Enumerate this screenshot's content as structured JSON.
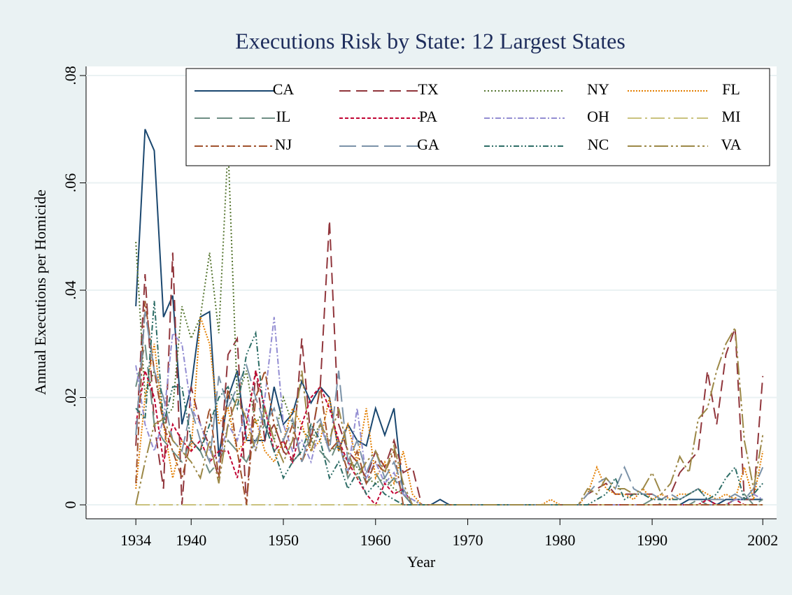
{
  "chart_data": {
    "type": "line",
    "title": "Executions Risk by State: 12 Largest States",
    "x_label": "Year",
    "y_label": "Annual Executions per Homicide",
    "x": [
      1934,
      1935,
      1936,
      1937,
      1938,
      1939,
      1940,
      1941,
      1942,
      1943,
      1944,
      1945,
      1946,
      1947,
      1948,
      1949,
      1950,
      1951,
      1952,
      1953,
      1954,
      1955,
      1956,
      1957,
      1958,
      1959,
      1960,
      1961,
      1962,
      1963,
      1964,
      1965,
      1966,
      1967,
      1968,
      1969,
      1970,
      1971,
      1972,
      1973,
      1974,
      1975,
      1976,
      1977,
      1978,
      1979,
      1980,
      1981,
      1982,
      1983,
      1984,
      1985,
      1986,
      1987,
      1988,
      1989,
      1990,
      1991,
      1992,
      1993,
      1994,
      1995,
      1996,
      1997,
      1998,
      1999,
      2000,
      2001,
      2002
    ],
    "xlim": [
      1928.6,
      2003.5
    ],
    "xticks": [
      1934,
      1940,
      1950,
      1960,
      1970,
      1980,
      1990,
      2002
    ],
    "ylim": [
      -0.0026,
      0.0817
    ],
    "yticks": [
      0,
      {
        "value": 0.02,
        "label": ".02"
      },
      {
        "value": 0.04,
        "label": ".04"
      },
      {
        "value": 0.06,
        "label": ".06"
      },
      {
        "value": 0.08,
        "label": ".08"
      }
    ],
    "grid": true,
    "legend_position": "top-right",
    "series": [
      {
        "name": "CA",
        "color": "#1a476f",
        "dash": "none",
        "values": [
          0.037,
          0.07,
          0.066,
          0.035,
          0.039,
          0.015,
          0.022,
          0.035,
          0.036,
          0.009,
          0.02,
          0.025,
          0.012,
          0.012,
          0.012,
          0.022,
          0.015,
          0.017,
          0.023,
          0.019,
          0.022,
          0.02,
          0.01,
          0.015,
          0.012,
          0.011,
          0.018,
          0.013,
          0.018,
          0.002,
          0,
          0,
          0,
          0.001,
          0,
          0,
          0,
          0,
          0,
          0,
          0,
          0,
          0,
          0,
          0,
          0,
          0,
          0,
          0,
          0,
          0,
          0,
          0,
          0,
          0,
          0,
          0,
          0,
          0,
          0,
          0.001,
          0.001,
          0.001,
          0,
          0.001,
          0.001,
          0.001,
          0.001,
          0.001
        ]
      },
      {
        "name": "TX",
        "color": "#90353b",
        "dash": "16 8",
        "values": [
          0.011,
          0.043,
          0.015,
          0.003,
          0.047,
          0,
          0.022,
          0.015,
          0.011,
          0.005,
          0.028,
          0.031,
          0,
          0.025,
          0.012,
          0.015,
          0.01,
          0.008,
          0.031,
          0.012,
          0.022,
          0.053,
          0.015,
          0.01,
          0.008,
          0.005,
          0.01,
          0.007,
          0.012,
          0.006,
          0.007,
          0,
          0,
          0,
          0,
          0,
          0,
          0,
          0,
          0,
          0,
          0,
          0,
          0,
          0,
          0,
          0,
          0,
          0,
          0.002,
          0.003,
          0.004,
          0.002,
          0.002,
          0.002,
          0.002,
          0.002,
          0.001,
          0.002,
          0.006,
          0.008,
          0.01,
          0.025,
          0.015,
          0.028,
          0.033,
          0.001,
          0.001,
          0.024
        ]
      },
      {
        "name": "NY",
        "color": "#55752f",
        "dash": "2 3",
        "values": [
          0.049,
          0.02,
          0.025,
          0.016,
          0.018,
          0.037,
          0.031,
          0.035,
          0.047,
          0.032,
          0.067,
          0.02,
          0.025,
          0.015,
          0.018,
          0.012,
          0.02,
          0.015,
          0.014,
          0.012,
          0.015,
          0.01,
          0.011,
          0.008,
          0.007,
          0.005,
          0.004,
          0.005,
          0.003,
          0.002,
          0.001,
          0,
          0,
          0,
          0,
          0,
          0,
          0,
          0,
          0,
          0,
          0,
          0,
          0,
          0,
          0,
          0,
          0,
          0,
          0,
          0,
          0,
          0,
          0,
          0,
          0,
          0,
          0,
          0,
          0,
          0,
          0,
          0,
          0,
          0,
          0,
          0,
          0,
          0
        ]
      },
      {
        "name": "FL",
        "color": "#e37e00",
        "dash": "2 2",
        "values": [
          0.003,
          0.02,
          0.03,
          0.015,
          0.005,
          0.012,
          0.01,
          0.035,
          0.03,
          0.015,
          0.018,
          0.01,
          0.012,
          0.016,
          0.01,
          0.008,
          0.012,
          0.018,
          0.015,
          0.01,
          0.012,
          0.02,
          0.01,
          0.015,
          0.008,
          0.018,
          0.005,
          0.008,
          0.004,
          0.01,
          0.002,
          0,
          0,
          0,
          0,
          0,
          0,
          0,
          0,
          0,
          0,
          0,
          0,
          0,
          0,
          0.001,
          0,
          0,
          0,
          0.002,
          0.007,
          0.003,
          0.002,
          0.002,
          0.001,
          0.003,
          0.001,
          0.002,
          0.001,
          0.002,
          0.002,
          0.003,
          0.002,
          0.001,
          0.002,
          0.001,
          0.007,
          0.001,
          0.01
        ]
      },
      {
        "name": "IL",
        "color": "#6e8e84",
        "dash": "22 10",
        "values": [
          0.022,
          0.03,
          0.015,
          0.012,
          0.01,
          0.008,
          0.012,
          0.01,
          0.006,
          0.008,
          0.012,
          0.01,
          0.008,
          0.012,
          0.015,
          0.01,
          0.012,
          0.008,
          0.01,
          0.012,
          0.01,
          0.008,
          0.012,
          0.005,
          0.008,
          0.004,
          0.006,
          0.003,
          0.005,
          0.002,
          0,
          0,
          0,
          0,
          0,
          0,
          0,
          0,
          0,
          0,
          0,
          0,
          0,
          0,
          0,
          0,
          0,
          0,
          0,
          0,
          0,
          0,
          0,
          0,
          0,
          0,
          0.001,
          0,
          0,
          0,
          0,
          0.001,
          0,
          0,
          0,
          0.001,
          0.002,
          0,
          0.001
        ]
      },
      {
        "name": "PA",
        "color": "#c10534",
        "dash": "5 3",
        "values": [
          0.015,
          0.025,
          0.02,
          0.008,
          0.015,
          0.012,
          0.01,
          0.012,
          0.008,
          0.01,
          0.01,
          0.005,
          0.015,
          0.025,
          0.018,
          0.01,
          0.012,
          0.008,
          0.015,
          0.02,
          0.022,
          0.018,
          0.012,
          0.008,
          0.005,
          0.002,
          0,
          0.004,
          0.002,
          0.003,
          0,
          0,
          0,
          0,
          0,
          0,
          0,
          0,
          0,
          0,
          0,
          0,
          0,
          0,
          0,
          0,
          0,
          0,
          0,
          0,
          0,
          0,
          0,
          0,
          0,
          0,
          0,
          0,
          0,
          0,
          0,
          0,
          0.001,
          0,
          0,
          0.001,
          0,
          0,
          0
        ]
      },
      {
        "name": "OH",
        "color": "#938dd2",
        "dash": "8 3 2 3",
        "values": [
          0.026,
          0.015,
          0.01,
          0.016,
          0.032,
          0.03,
          0.018,
          0.015,
          0.01,
          0.008,
          0.015,
          0.012,
          0.018,
          0.01,
          0.02,
          0.035,
          0.015,
          0.01,
          0.012,
          0.008,
          0.015,
          0.01,
          0.012,
          0.006,
          0.018,
          0.005,
          0.008,
          0.004,
          0.006,
          0.002,
          0.001,
          0,
          0,
          0,
          0,
          0,
          0,
          0,
          0,
          0,
          0,
          0,
          0,
          0,
          0,
          0,
          0,
          0,
          0,
          0,
          0,
          0,
          0,
          0,
          0,
          0,
          0,
          0,
          0,
          0,
          0,
          0,
          0,
          0,
          0,
          0.001,
          0.001,
          0.002,
          0.001
        ]
      },
      {
        "name": "MI",
        "color": "#cac27e",
        "dash": "20 5 3 5",
        "values": [
          0,
          0,
          0,
          0,
          0,
          0,
          0,
          0,
          0,
          0,
          0,
          0,
          0,
          0,
          0,
          0,
          0,
          0,
          0,
          0,
          0,
          0,
          0,
          0,
          0,
          0,
          0,
          0,
          0,
          0,
          0,
          0,
          0,
          0,
          0,
          0,
          0,
          0,
          0,
          0,
          0,
          0,
          0,
          0,
          0,
          0,
          0,
          0,
          0,
          0,
          0,
          0,
          0,
          0,
          0,
          0,
          0,
          0,
          0,
          0,
          0,
          0,
          0,
          0,
          0,
          0,
          0,
          0,
          0
        ]
      },
      {
        "name": "NJ",
        "color": "#a0522d",
        "dash": "12 4 3 4",
        "values": [
          0.004,
          0.038,
          0.025,
          0.015,
          0.01,
          0.005,
          0.012,
          0.01,
          0.018,
          0.005,
          0.022,
          0.01,
          0,
          0.02,
          0.025,
          0.015,
          0.01,
          0.015,
          0.008,
          0.012,
          0.022,
          0.01,
          0.012,
          0.006,
          0.01,
          0.004,
          0.008,
          0.006,
          0.01,
          0,
          0,
          0,
          0,
          0,
          0,
          0,
          0,
          0,
          0,
          0,
          0,
          0,
          0,
          0,
          0,
          0,
          0,
          0,
          0,
          0,
          0,
          0,
          0,
          0,
          0,
          0,
          0,
          0,
          0,
          0,
          0,
          0,
          0,
          0,
          0,
          0,
          0,
          0,
          0
        ]
      },
      {
        "name": "GA",
        "color": "#7b92a8",
        "dash": "24 8",
        "values": [
          0.013,
          0.036,
          0.025,
          0.02,
          0.012,
          0.01,
          0.018,
          0.012,
          0.008,
          0.024,
          0.018,
          0.022,
          0.026,
          0.02,
          0.015,
          0.018,
          0.012,
          0.016,
          0.008,
          0.014,
          0.016,
          0.01,
          0.025,
          0.008,
          0.012,
          0.006,
          0.01,
          0.005,
          0.008,
          0.003,
          0,
          0,
          0,
          0,
          0,
          0,
          0,
          0,
          0,
          0,
          0,
          0,
          0,
          0,
          0,
          0,
          0,
          0,
          0,
          0.002,
          0.004,
          0.005,
          0.003,
          0.007,
          0.003,
          0.002,
          0.002,
          0.001,
          0.002,
          0.001,
          0.002,
          0.003,
          0.001,
          0.001,
          0.001,
          0.002,
          0.001,
          0.003,
          0.007
        ]
      },
      {
        "name": "NC",
        "color": "#2d6d66",
        "dash": "8 3 2 3 2 3",
        "values": [
          0.018,
          0.016,
          0.038,
          0.015,
          0.022,
          0.022,
          0.012,
          0.01,
          0.015,
          0.02,
          0.022,
          0.018,
          0.028,
          0.032,
          0.015,
          0.01,
          0.005,
          0.008,
          0.01,
          0.015,
          0.012,
          0.005,
          0.008,
          0.003,
          0.006,
          0.002,
          0.004,
          0.002,
          0.001,
          0,
          0,
          0,
          0,
          0,
          0,
          0,
          0,
          0,
          0,
          0,
          0,
          0,
          0,
          0,
          0,
          0,
          0,
          0,
          0,
          0,
          0.001,
          0.002,
          0.005,
          0.001,
          0.002,
          0.002,
          0.001,
          0.001,
          0.001,
          0.001,
          0.002,
          0.003,
          0.001,
          0.002,
          0.005,
          0.007,
          0.001,
          0.002,
          0.004
        ]
      },
      {
        "name": "VA",
        "color": "#9c8847",
        "dash": "20 4 3 4 3 4",
        "values": [
          0,
          0.008,
          0.015,
          0.016,
          0.012,
          0.01,
          0.008,
          0.005,
          0.012,
          0.004,
          0.015,
          0.02,
          0.016,
          0.01,
          0.018,
          0.012,
          0.008,
          0.012,
          0.025,
          0.01,
          0.015,
          0.012,
          0.018,
          0.01,
          0.005,
          0.008,
          0.01,
          0.006,
          0.011,
          0.004,
          0,
          0,
          0,
          0,
          0,
          0,
          0,
          0,
          0,
          0,
          0,
          0,
          0,
          0,
          0,
          0,
          0,
          0,
          0,
          0.003,
          0.002,
          0.005,
          0.003,
          0.003,
          0.002,
          0.003,
          0.006,
          0.002,
          0.004,
          0.009,
          0.006,
          0.016,
          0.018,
          0.025,
          0.03,
          0.033,
          0.012,
          0.003,
          0.013
        ]
      }
    ]
  }
}
